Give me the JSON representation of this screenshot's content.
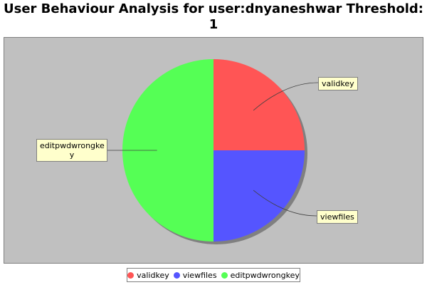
{
  "chart_data": {
    "type": "pie",
    "title_line1": "User Behaviour Analysis for user:dnyaneshwar Threshold:",
    "title_line2": "1",
    "slices": [
      {
        "label": "validkey",
        "value": 25,
        "color": "#ff5555"
      },
      {
        "label": "viewfiles",
        "value": 25,
        "color": "#5555ff"
      },
      {
        "label": "editpwdwrongkey",
        "value": 50,
        "color": "#55ff55"
      }
    ],
    "callouts": {
      "validkey": "validkey",
      "viewfiles": "viewfiles",
      "editpwdwrongkey_line1": "editpwdwrongke",
      "editpwdwrongkey_line2": "y"
    },
    "legend_position": "bottom",
    "plot_background": "#c0c0c0"
  }
}
